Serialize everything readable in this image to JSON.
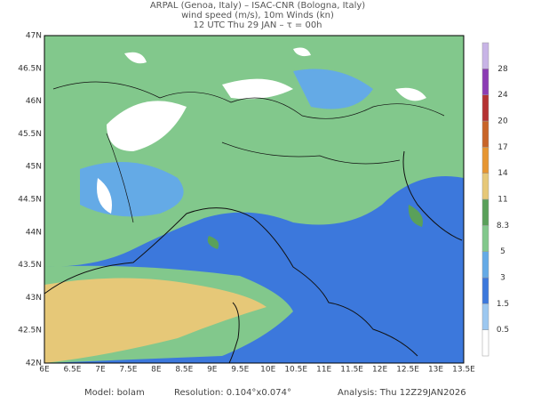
{
  "header": {
    "line1": "ARPAL (Genoa, Italy)  –  ISAC-CNR (Bologna, Italy)",
    "line2": "wind speed (m/s), 10m Winds (kn)",
    "line3": "12 UTC Thu 29 JAN  –  τ = 00h"
  },
  "map": {
    "lon_labels": [
      "6E",
      "6.5E",
      "7E",
      "7.5E",
      "8E",
      "8.5E",
      "9E",
      "9.5E",
      "10E",
      "10.5E",
      "11E",
      "11.5E",
      "12E",
      "12.5E",
      "13E",
      "13.5E"
    ],
    "lat_labels": [
      "42N",
      "42.5N",
      "43N",
      "43.5N",
      "44N",
      "44.5N",
      "45N",
      "45.5N",
      "46N",
      "46.5N",
      "47N"
    ]
  },
  "colorbar": {
    "labels": [
      "0.5",
      "1.5",
      "3",
      "5",
      "8.3",
      "11",
      "14",
      "17",
      "20",
      "24",
      "28"
    ],
    "colors": [
      "#ffffff",
      "#9cc8f0",
      "#3c78dc",
      "#64aae6",
      "#82c88c",
      "#5aa05a",
      "#e6c878",
      "#e69632",
      "#c86428",
      "#b43232",
      "#8c3cb4",
      "#c8b4e6"
    ]
  },
  "footer": {
    "model": "Model: bolam",
    "resolution": "Resolution: 0.104°x0.074°",
    "analysis": "Analysis: Thu 12Z29JAN2026"
  }
}
